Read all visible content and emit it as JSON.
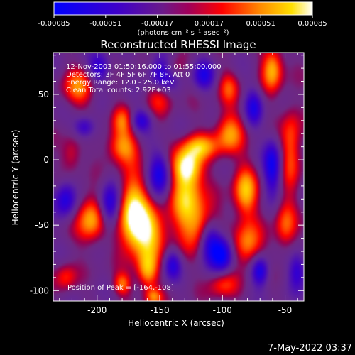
{
  "chart_data": {
    "type": "heatmap",
    "title": "Reconstructed RHESSI Image",
    "xlabel": "Heliocentric X (arcsec)",
    "ylabel": "Heliocentric Y (arcsec)",
    "xlim": [
      -235,
      -35
    ],
    "ylim": [
      -108,
      82
    ],
    "xticks": [
      -200,
      -150,
      -100,
      -50
    ],
    "xtick_labels": [
      "-200",
      "-150",
      "-100",
      "-50"
    ],
    "yticks": [
      -100,
      -50,
      0,
      50
    ],
    "ytick_labels": [
      "-100",
      "-50",
      "0",
      "50"
    ],
    "colorbar": {
      "range": [
        -0.00085,
        0.00085
      ],
      "ticks": [
        -0.00085,
        -0.00051,
        -0.00017,
        0.00017,
        0.00051,
        0.00085
      ],
      "tick_labels": [
        "-0.00085",
        "-0.00051",
        "-0.00017",
        "0.00017",
        "0.00051",
        "0.00085"
      ],
      "units_label": "(photons cm⁻² s⁻¹ asec⁻²)",
      "colormap": "blue-purple-red-orange-yellow-white"
    },
    "annotations": [
      "12-Nov-2003 01:50:16.000 to 01:55:00.000",
      "Detectors: 3F 4F 5F 6F 7F 8F, Att 0",
      "Energy Range: 12.0 - 25.0 keV",
      "Clean    Total counts: 2.92E+03"
    ],
    "peak_label": "Position of Peak = [-164,-108]",
    "peak": [
      -164,
      -108
    ],
    "blobs": [
      {
        "x": -162,
        "y": -55,
        "v": 1.0,
        "sx": 12,
        "sy": 14
      },
      {
        "x": -172,
        "y": -35,
        "v": 0.85,
        "sx": 8,
        "sy": 18
      },
      {
        "x": -160,
        "y": -85,
        "v": 0.75,
        "sx": 6,
        "sy": 10
      },
      {
        "x": -128,
        "y": -30,
        "v": 0.85,
        "sx": 9,
        "sy": 22
      },
      {
        "x": -128,
        "y": -5,
        "v": 0.8,
        "sx": 8,
        "sy": 9
      },
      {
        "x": -118,
        "y": 10,
        "v": 0.65,
        "sx": 10,
        "sy": 7
      },
      {
        "x": -113,
        "y": -50,
        "v": 0.7,
        "sx": 8,
        "sy": 12
      },
      {
        "x": -205,
        "y": -45,
        "v": 0.8,
        "sx": 8,
        "sy": 13
      },
      {
        "x": -180,
        "y": 10,
        "v": 0.7,
        "sx": 9,
        "sy": 9
      },
      {
        "x": -180,
        "y": 30,
        "v": 0.5,
        "sx": 6,
        "sy": 8
      },
      {
        "x": -95,
        "y": 20,
        "v": 0.7,
        "sx": 8,
        "sy": 12
      },
      {
        "x": -82,
        "y": -25,
        "v": 0.8,
        "sx": 7,
        "sy": 14
      },
      {
        "x": -80,
        "y": -65,
        "v": 0.7,
        "sx": 8,
        "sy": 12
      },
      {
        "x": -45,
        "y": 10,
        "v": 0.6,
        "sx": 6,
        "sy": 22
      },
      {
        "x": -50,
        "y": -50,
        "v": 0.55,
        "sx": 6,
        "sy": 14
      },
      {
        "x": -60,
        "y": 70,
        "v": 0.8,
        "sx": 6,
        "sy": 12
      },
      {
        "x": -150,
        "y": 50,
        "v": 0.5,
        "sx": 8,
        "sy": 10
      },
      {
        "x": -215,
        "y": 55,
        "v": 0.6,
        "sx": 9,
        "sy": 10
      },
      {
        "x": -220,
        "y": 5,
        "v": 0.4,
        "sx": 6,
        "sy": 10
      },
      {
        "x": -225,
        "y": -90,
        "v": 0.45,
        "sx": 6,
        "sy": 8
      },
      {
        "x": -100,
        "y": -95,
        "v": 0.5,
        "sx": 8,
        "sy": 8
      },
      {
        "x": -140,
        "y": 70,
        "v": 0.4,
        "sx": 6,
        "sy": 6
      },
      {
        "x": -95,
        "y": 55,
        "v": 0.45,
        "sx": 6,
        "sy": 9
      },
      {
        "x": -180,
        "y": -95,
        "v": 0.6,
        "sx": 5,
        "sy": 6
      },
      {
        "x": -155,
        "y": -105,
        "v": 0.6,
        "sx": 5,
        "sy": 5
      },
      {
        "x": -148,
        "y": 65,
        "v": -0.8,
        "sx": 8,
        "sy": 10
      },
      {
        "x": -110,
        "y": -60,
        "v": -0.9,
        "sx": 6,
        "sy": 12
      },
      {
        "x": -100,
        "y": -72,
        "v": -0.9,
        "sx": 6,
        "sy": 10
      },
      {
        "x": -190,
        "y": -35,
        "v": -0.8,
        "sx": 6,
        "sy": 12
      },
      {
        "x": -60,
        "y": -5,
        "v": -0.8,
        "sx": 5,
        "sy": 14
      },
      {
        "x": -150,
        "y": -10,
        "v": -0.7,
        "sx": 6,
        "sy": 12
      },
      {
        "x": -225,
        "y": -30,
        "v": -0.7,
        "sx": 6,
        "sy": 10
      },
      {
        "x": -198,
        "y": 70,
        "v": -0.6,
        "sx": 6,
        "sy": 8
      },
      {
        "x": -115,
        "y": 65,
        "v": -0.6,
        "sx": 6,
        "sy": 8
      },
      {
        "x": -70,
        "y": -85,
        "v": -0.8,
        "sx": 5,
        "sy": 8
      },
      {
        "x": -40,
        "y": -85,
        "v": -0.6,
        "sx": 5,
        "sy": 10
      },
      {
        "x": -140,
        "y": -80,
        "v": -0.6,
        "sx": 5,
        "sy": 8
      },
      {
        "x": -165,
        "y": 30,
        "v": -0.6,
        "sx": 6,
        "sy": 6
      },
      {
        "x": -210,
        "y": 25,
        "v": -0.6,
        "sx": 6,
        "sy": 6
      },
      {
        "x": -75,
        "y": 40,
        "v": -0.6,
        "sx": 5,
        "sy": 10
      }
    ]
  },
  "footer": {
    "timestamp": "7-May-2022 03:37"
  }
}
